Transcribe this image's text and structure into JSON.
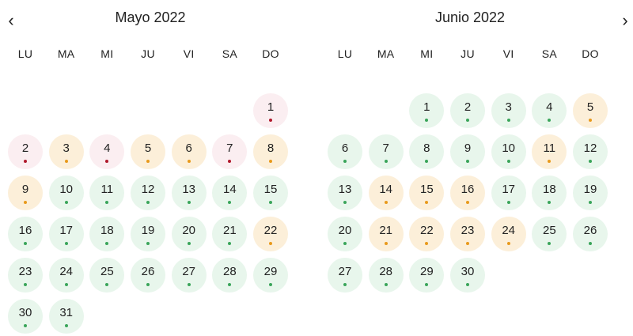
{
  "nav": {
    "prev_icon": "chevron-left-icon",
    "next_icon": "chevron-right-icon",
    "prev_glyph": "‹",
    "next_glyph": "›"
  },
  "status_colors": {
    "green": {
      "bg": "#e8f6ec",
      "dot": "#3aa55a"
    },
    "orange": {
      "bg": "#fcefd9",
      "dot": "#e89a1c"
    },
    "red": {
      "bg": "#fbeef1",
      "dot": "#b0192c"
    }
  },
  "months": [
    {
      "title": "Mayo 2022",
      "weekdays": [
        "LU",
        "MA",
        "MI",
        "JU",
        "VI",
        "SA",
        "DO"
      ],
      "first_weekday_index": 6,
      "days": [
        {
          "n": "1",
          "s": "red"
        },
        {
          "n": "2",
          "s": "red"
        },
        {
          "n": "3",
          "s": "orange"
        },
        {
          "n": "4",
          "s": "red"
        },
        {
          "n": "5",
          "s": "orange"
        },
        {
          "n": "6",
          "s": "orange"
        },
        {
          "n": "7",
          "s": "red"
        },
        {
          "n": "8",
          "s": "orange"
        },
        {
          "n": "9",
          "s": "orange"
        },
        {
          "n": "10",
          "s": "green"
        },
        {
          "n": "11",
          "s": "green"
        },
        {
          "n": "12",
          "s": "green"
        },
        {
          "n": "13",
          "s": "green"
        },
        {
          "n": "14",
          "s": "green"
        },
        {
          "n": "15",
          "s": "green"
        },
        {
          "n": "16",
          "s": "green"
        },
        {
          "n": "17",
          "s": "green"
        },
        {
          "n": "18",
          "s": "green"
        },
        {
          "n": "19",
          "s": "green"
        },
        {
          "n": "20",
          "s": "green"
        },
        {
          "n": "21",
          "s": "green"
        },
        {
          "n": "22",
          "s": "orange"
        },
        {
          "n": "23",
          "s": "green"
        },
        {
          "n": "24",
          "s": "green"
        },
        {
          "n": "25",
          "s": "green"
        },
        {
          "n": "26",
          "s": "green"
        },
        {
          "n": "27",
          "s": "green"
        },
        {
          "n": "28",
          "s": "green"
        },
        {
          "n": "29",
          "s": "green"
        },
        {
          "n": "30",
          "s": "green"
        },
        {
          "n": "31",
          "s": "green"
        }
      ]
    },
    {
      "title": "Junio 2022",
      "weekdays": [
        "LU",
        "MA",
        "MI",
        "JU",
        "VI",
        "SA",
        "DO"
      ],
      "first_weekday_index": 2,
      "days": [
        {
          "n": "1",
          "s": "green"
        },
        {
          "n": "2",
          "s": "green"
        },
        {
          "n": "3",
          "s": "green"
        },
        {
          "n": "4",
          "s": "green"
        },
        {
          "n": "5",
          "s": "orange"
        },
        {
          "n": "6",
          "s": "green"
        },
        {
          "n": "7",
          "s": "green"
        },
        {
          "n": "8",
          "s": "green"
        },
        {
          "n": "9",
          "s": "green"
        },
        {
          "n": "10",
          "s": "green"
        },
        {
          "n": "11",
          "s": "orange"
        },
        {
          "n": "12",
          "s": "green"
        },
        {
          "n": "13",
          "s": "green"
        },
        {
          "n": "14",
          "s": "orange"
        },
        {
          "n": "15",
          "s": "orange"
        },
        {
          "n": "16",
          "s": "orange"
        },
        {
          "n": "17",
          "s": "green"
        },
        {
          "n": "18",
          "s": "green"
        },
        {
          "n": "19",
          "s": "green"
        },
        {
          "n": "20",
          "s": "green"
        },
        {
          "n": "21",
          "s": "orange"
        },
        {
          "n": "22",
          "s": "orange"
        },
        {
          "n": "23",
          "s": "orange"
        },
        {
          "n": "24",
          "s": "orange"
        },
        {
          "n": "25",
          "s": "green"
        },
        {
          "n": "26",
          "s": "green"
        },
        {
          "n": "27",
          "s": "green"
        },
        {
          "n": "28",
          "s": "green"
        },
        {
          "n": "29",
          "s": "green"
        },
        {
          "n": "30",
          "s": "green"
        }
      ]
    }
  ]
}
